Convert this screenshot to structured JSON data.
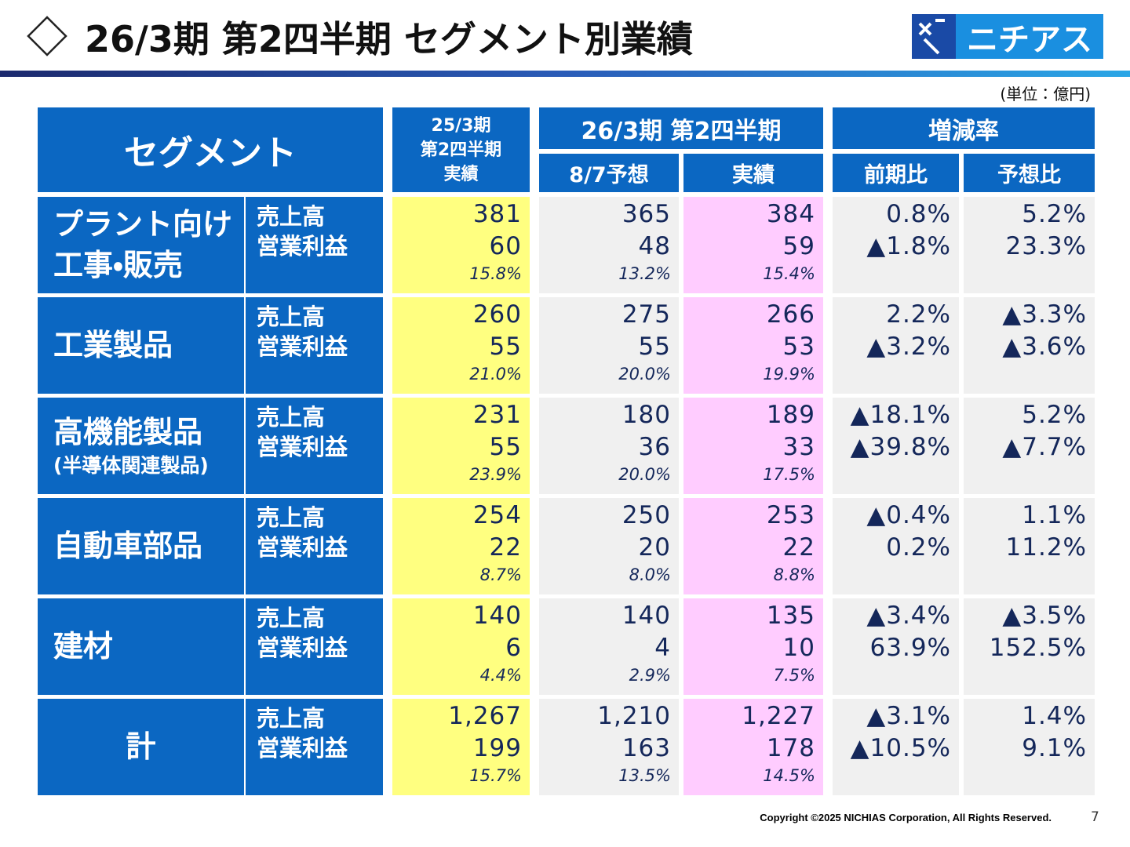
{
  "header": {
    "title": "26/3期 第2四半期 セグメント別業績",
    "logo": "ニチアス"
  },
  "unit": "(単位：億円)",
  "table": {
    "headers": {
      "segment": "セグメント",
      "prev": [
        "25/3期",
        "第2四半期",
        "実績"
      ],
      "current": "26/3期 第2四半期",
      "forecast": "8/7予想",
      "actual": "実績",
      "change": "増減率",
      "vs_prev": "前期比",
      "vs_forecast": "予想比"
    },
    "rows": [
      {
        "segment": [
          "プラント向け",
          "工事・販売"
        ],
        "metrics": [
          "売上高",
          "営業利益"
        ],
        "prev": [
          "381",
          "60",
          "15.8%"
        ],
        "forecast": [
          "365",
          "48",
          "13.2%"
        ],
        "actual": [
          "384",
          "59",
          "15.4%"
        ],
        "vs_prev": [
          "0.8%",
          "▲1.8%"
        ],
        "vs_forecast": [
          "5.2%",
          "23.3%"
        ]
      },
      {
        "segment": [
          "工業製品"
        ],
        "metrics": [
          "売上高",
          "営業利益"
        ],
        "prev": [
          "260",
          "55",
          "21.0%"
        ],
        "forecast": [
          "275",
          "55",
          "20.0%"
        ],
        "actual": [
          "266",
          "53",
          "19.9%"
        ],
        "vs_prev": [
          "2.2%",
          "▲3.2%"
        ],
        "vs_forecast": [
          "▲3.3%",
          "▲3.6%"
        ]
      },
      {
        "segment": [
          "高機能製品",
          "(半導体関連製品)"
        ],
        "metrics": [
          "売上高",
          "営業利益"
        ],
        "prev": [
          "231",
          "55",
          "23.9%"
        ],
        "forecast": [
          "180",
          "36",
          "20.0%"
        ],
        "actual": [
          "189",
          "33",
          "17.5%"
        ],
        "vs_prev": [
          "▲18.1%",
          "▲39.8%"
        ],
        "vs_forecast": [
          "5.2%",
          "▲7.7%"
        ]
      },
      {
        "segment": [
          "自動車部品"
        ],
        "metrics": [
          "売上高",
          "営業利益"
        ],
        "prev": [
          "254",
          "22",
          "8.7%"
        ],
        "forecast": [
          "250",
          "20",
          "8.0%"
        ],
        "actual": [
          "253",
          "22",
          "8.8%"
        ],
        "vs_prev": [
          "▲0.4%",
          "0.2%"
        ],
        "vs_forecast": [
          "1.1%",
          "11.2%"
        ]
      },
      {
        "segment": [
          "建材"
        ],
        "metrics": [
          "売上高",
          "営業利益"
        ],
        "prev": [
          "140",
          "6",
          "4.4%"
        ],
        "forecast": [
          "140",
          "4",
          "2.9%"
        ],
        "actual": [
          "135",
          "10",
          "7.5%"
        ],
        "vs_prev": [
          "▲3.4%",
          "63.9%"
        ],
        "vs_forecast": [
          "▲3.5%",
          "152.5%"
        ]
      },
      {
        "segment": [
          "計"
        ],
        "metrics": [
          "売上高",
          "営業利益"
        ],
        "prev": [
          "1,267",
          "199",
          "15.7%"
        ],
        "forecast": [
          "1,210",
          "163",
          "13.5%"
        ],
        "actual": [
          "1,227",
          "178",
          "14.5%"
        ],
        "vs_prev": [
          "▲3.1%",
          "▲10.5%"
        ],
        "vs_forecast": [
          "1.4%",
          "9.1%"
        ]
      }
    ]
  },
  "footer": {
    "copyright": "Copyright ©2025 NICHIAS Corporation, All Rights Reserved.",
    "page": "7"
  }
}
